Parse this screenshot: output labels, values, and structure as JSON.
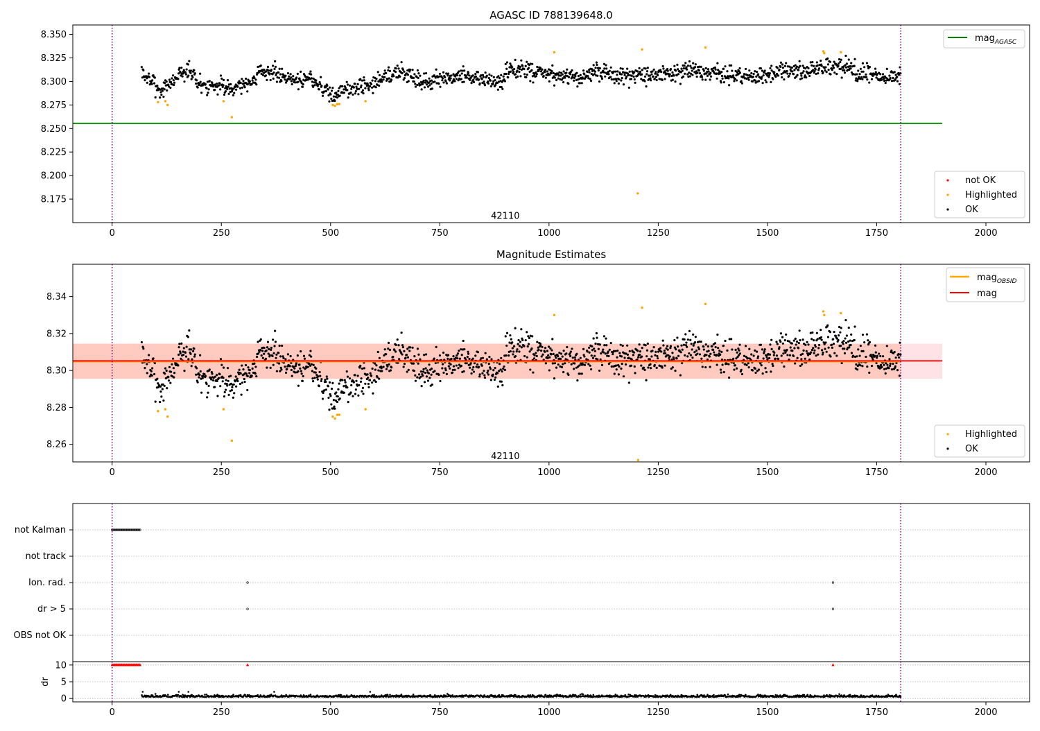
{
  "chart_data": [
    {
      "type": "scatter",
      "title": "AGASC ID 788139648.0",
      "xlim": [
        -90,
        2100
      ],
      "ylim": [
        8.15,
        8.36
      ],
      "xticks": [
        0,
        250,
        500,
        750,
        1000,
        1250,
        1500,
        1750,
        2000
      ],
      "yticks": [
        8.175,
        8.2,
        8.225,
        8.25,
        8.275,
        8.3,
        8.325,
        8.35
      ],
      "ytick_decimals": 3,
      "annotation": {
        "x": 900,
        "y": 8.157,
        "text": "42110"
      },
      "vlines": [
        0,
        1805
      ],
      "hlines": [
        {
          "name": "mag_AGASC",
          "y": 8.2555,
          "xmin": -90,
          "xmax": 1900,
          "color": "#008000"
        }
      ],
      "legends": [
        {
          "position": "top-right",
          "entries": [
            {
              "kind": "line",
              "label": "mag",
              "sub": "AGASC",
              "color": "#008000"
            }
          ]
        },
        {
          "position": "bottom-right",
          "entries": [
            {
              "kind": "dot",
              "label": "not OK",
              "color": "#ff0000"
            },
            {
              "kind": "dot",
              "label": "Highlighted",
              "color": "#ffa500"
            },
            {
              "kind": "dot",
              "label": "OK",
              "color": "#000000"
            }
          ]
        }
      ],
      "series": [
        {
          "name": "OK",
          "color": "#000000",
          "profile": "ok"
        },
        {
          "name": "Highlighted",
          "color": "#ffa500",
          "x": [
            105,
            122,
            127,
            255,
            274,
            505,
            510,
            515,
            520,
            580,
            1012,
            1203,
            1213,
            1358,
            1628,
            1630,
            1668
          ],
          "y": [
            8.278,
            8.279,
            8.275,
            8.279,
            8.262,
            8.275,
            8.274,
            8.276,
            8.276,
            8.279,
            8.331,
            8.181,
            8.334,
            8.336,
            8.332,
            8.33,
            8.331
          ]
        },
        {
          "name": "not OK",
          "color": "#ff0000",
          "x": [],
          "y": []
        }
      ]
    },
    {
      "type": "scatter",
      "title": "Magnitude Estimates",
      "xlim": [
        -90,
        2100
      ],
      "ylim": [
        8.2505,
        8.3575
      ],
      "xticks": [
        0,
        250,
        500,
        750,
        1000,
        1250,
        1500,
        1750,
        2000
      ],
      "yticks": [
        8.26,
        8.28,
        8.3,
        8.32,
        8.34
      ],
      "ytick_decimals": 2,
      "annotation": {
        "x": 900,
        "y": 8.2535,
        "text": "42110"
      },
      "vlines": [
        0,
        1805
      ],
      "bands": [
        {
          "y0": 8.2955,
          "y1": 8.3145,
          "xmin": -90,
          "xmax": 1900,
          "color": "#ffb6c1",
          "opacity": 0.4
        },
        {
          "y0": 8.2955,
          "y1": 8.3145,
          "xmin": -90,
          "xmax": 1805,
          "color": "#ffa07a",
          "opacity": 0.35
        }
      ],
      "hlines": [
        {
          "name": "mag_OBSID",
          "y": 8.3048,
          "xmin": -90,
          "xmax": 1805,
          "color": "#ffa500"
        },
        {
          "name": "mag",
          "y": 8.3052,
          "xmin": -90,
          "xmax": 1900,
          "color": "#ff0000"
        }
      ],
      "legends": [
        {
          "position": "top-right",
          "entries": [
            {
              "kind": "line",
              "label": "mag",
              "sub": "OBSID",
              "color": "#ffa500"
            },
            {
              "kind": "line",
              "label": "mag",
              "sub": "",
              "color": "#ff0000"
            }
          ]
        },
        {
          "position": "bottom-right",
          "entries": [
            {
              "kind": "dot",
              "label": "Highlighted",
              "color": "#ffa500"
            },
            {
              "kind": "dot",
              "label": "OK",
              "color": "#000000"
            }
          ]
        }
      ],
      "series": [
        {
          "name": "OK",
          "color": "#000000",
          "profile": "ok"
        },
        {
          "name": "Highlighted",
          "color": "#ffa500",
          "x": [
            105,
            122,
            127,
            255,
            274,
            505,
            510,
            515,
            520,
            580,
            1012,
            1204,
            1213,
            1358,
            1628,
            1630,
            1668
          ],
          "y": [
            8.278,
            8.279,
            8.275,
            8.279,
            8.262,
            8.275,
            8.274,
            8.276,
            8.276,
            8.279,
            8.33,
            8.2515,
            8.334,
            8.336,
            8.332,
            8.33,
            8.331
          ]
        }
      ]
    },
    {
      "type": "scatter",
      "title": "",
      "xlim": [
        -90,
        2100
      ],
      "categories": [
        "not Kalman",
        "not track",
        "Ion. rad.",
        "dr > 5",
        "OBS not OK"
      ],
      "vlines": [
        0,
        1805
      ],
      "flags": [
        {
          "category": "not Kalman",
          "x_start": 0,
          "x_end": 66,
          "x": []
        },
        {
          "category": "not track",
          "x": []
        },
        {
          "category": "Ion. rad.",
          "x": [
            310,
            1650
          ]
        },
        {
          "category": "dr > 5",
          "x": [
            310,
            1650
          ]
        },
        {
          "category": "OBS not OK",
          "x": []
        }
      ]
    },
    {
      "type": "scatter",
      "title": "",
      "ylabel": "dr",
      "xlim": [
        -90,
        2100
      ],
      "ylim": [
        -1,
        11
      ],
      "xticks": [
        0,
        250,
        500,
        750,
        1000,
        1250,
        1500,
        1750,
        2000
      ],
      "yticks": [
        0,
        5,
        10
      ],
      "vlines": [
        0,
        1805
      ],
      "clipped_at_10": {
        "x_start": 0,
        "x_end": 66,
        "extra_x": [
          310,
          1650
        ],
        "color": "#ff0000"
      },
      "series": [
        {
          "name": "dr",
          "color": "#000000",
          "profile": "dr"
        }
      ]
    }
  ]
}
